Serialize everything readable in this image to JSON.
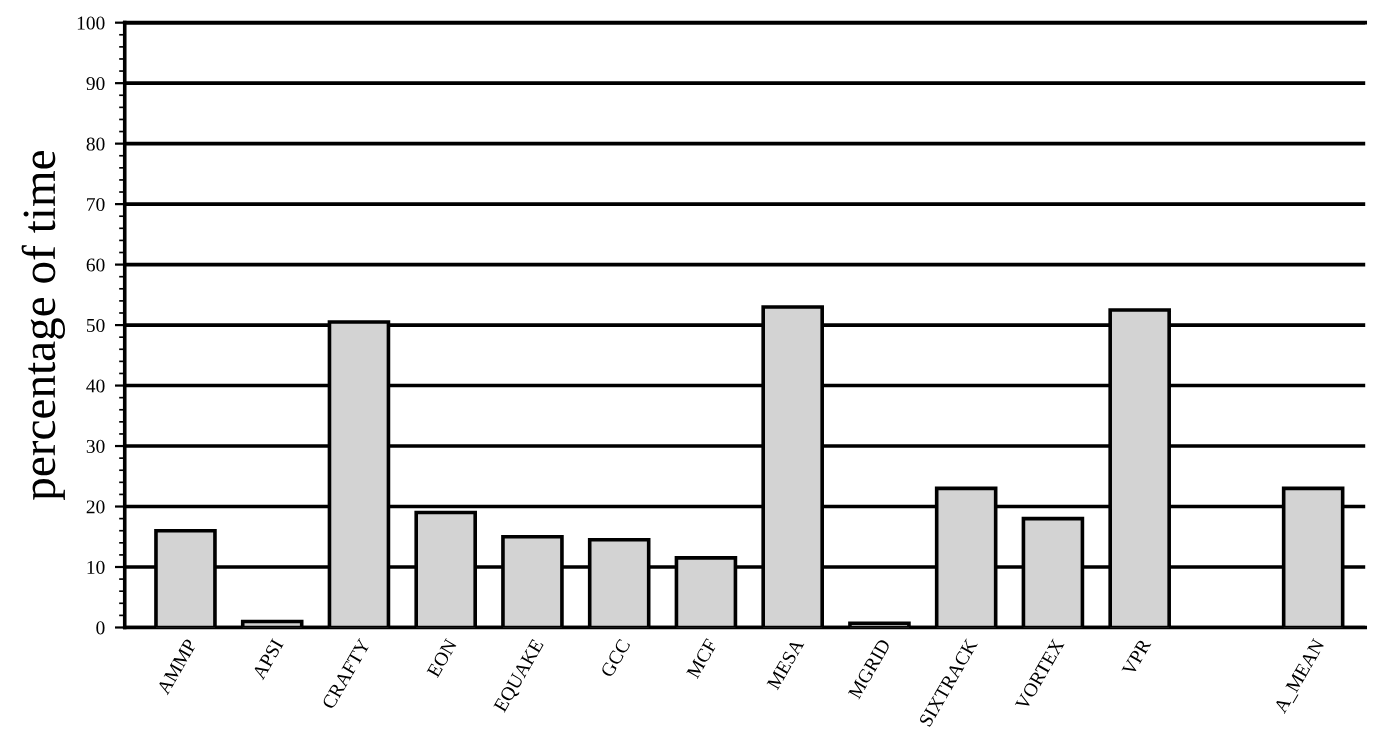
{
  "chart_data": {
    "type": "bar",
    "ylabel": "percentage of time",
    "categories": [
      "AMMP",
      "APSI",
      "CRAFTY",
      "EON",
      "EQUAKE",
      "GCC",
      "MCF",
      "MESA",
      "MGRID",
      "SIXTRACK",
      "VORTEX",
      "VPR",
      null,
      "A_MEAN"
    ],
    "values": [
      16,
      1,
      50.5,
      19,
      15,
      14.5,
      11.5,
      53,
      0.7,
      23,
      18,
      52.5,
      null,
      23
    ],
    "color": "#d3d3d3",
    "ylim": [
      0,
      100
    ],
    "yticks": [
      0,
      10,
      20,
      30,
      40,
      50,
      60,
      70,
      80,
      90,
      100
    ],
    "grid": "y"
  }
}
